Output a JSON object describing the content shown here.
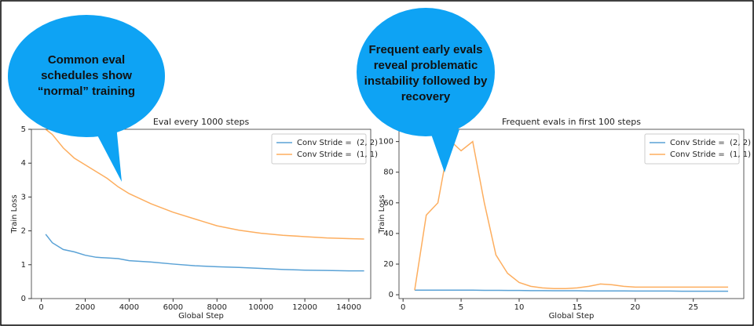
{
  "chart_data": [
    {
      "type": "line",
      "title": "Eval every 1000 steps",
      "x_label": "Global Step",
      "y_label": "Train Loss",
      "x": [
        200,
        500,
        1000,
        1500,
        2000,
        2500,
        3000,
        3500,
        4000,
        5000,
        6000,
        7000,
        8000,
        9000,
        10000,
        11000,
        12000,
        13000,
        14000,
        14700
      ],
      "xlim": [
        -450,
        15000
      ],
      "xticks": [
        0,
        2000,
        4000,
        6000,
        8000,
        10000,
        12000,
        14000
      ],
      "ylim": [
        0,
        5
      ],
      "yticks": [
        0,
        1,
        2,
        3,
        4,
        5
      ],
      "legend": "upper right",
      "series": [
        {
          "name": "Conv Stride =  (2, 2)",
          "color": "#5aa2d6",
          "values": [
            1.9,
            1.65,
            1.45,
            1.38,
            1.28,
            1.22,
            1.2,
            1.18,
            1.12,
            1.08,
            1.02,
            0.97,
            0.94,
            0.92,
            0.89,
            0.86,
            0.84,
            0.83,
            0.82,
            0.82
          ]
        },
        {
          "name": "Conv Stride =  (1, 1)",
          "color": "#fdae5f",
          "values": [
            5.0,
            4.85,
            4.45,
            4.15,
            3.95,
            3.75,
            3.55,
            3.3,
            3.1,
            2.8,
            2.55,
            2.35,
            2.15,
            2.02,
            1.93,
            1.87,
            1.83,
            1.79,
            1.77,
            1.76
          ]
        }
      ],
      "callout": [
        "Common eval",
        "schedules show",
        "“normal” training"
      ]
    },
    {
      "type": "line",
      "title": "Frequent evals in first 100 steps",
      "x_label": "Global Step",
      "y_label": "Train Loss",
      "x": [
        1,
        2,
        3,
        4,
        5,
        6,
        7,
        8,
        9,
        10,
        11,
        12,
        13,
        14,
        15,
        16,
        17,
        18,
        19,
        20,
        21,
        22,
        23,
        24,
        25,
        26,
        27,
        28
      ],
      "xlim": [
        -0.35,
        29.35
      ],
      "xticks": [
        0,
        5,
        10,
        15,
        20,
        25
      ],
      "ylim": [
        -2.5,
        108
      ],
      "yticks": [
        0,
        20,
        40,
        60,
        80,
        100
      ],
      "legend": "upper right",
      "series": [
        {
          "name": "Conv Stride =  (2, 2)",
          "color": "#5aa2d6",
          "values": [
            3,
            3,
            3,
            3,
            3,
            3,
            2.9,
            2.9,
            2.8,
            2.8,
            2.7,
            2.7,
            2.6,
            2.6,
            2.6,
            2.5,
            2.5,
            2.5,
            2.5,
            2.4,
            2.4,
            2.4,
            2.4,
            2.3,
            2.3,
            2.3,
            2.3,
            2.3
          ]
        },
        {
          "name": "Conv Stride =  (1, 1)",
          "color": "#fdae5f",
          "values": [
            3,
            52,
            60,
            101,
            94,
            100,
            60,
            26,
            14,
            8,
            5.5,
            4.5,
            4,
            4,
            4.5,
            5.5,
            7,
            6.5,
            5.5,
            5,
            5,
            5,
            5,
            5,
            5,
            5,
            5,
            5
          ]
        }
      ],
      "callout": [
        "Frequent early evals",
        "reveal problematic",
        "instability followed by",
        "recovery"
      ]
    }
  ]
}
